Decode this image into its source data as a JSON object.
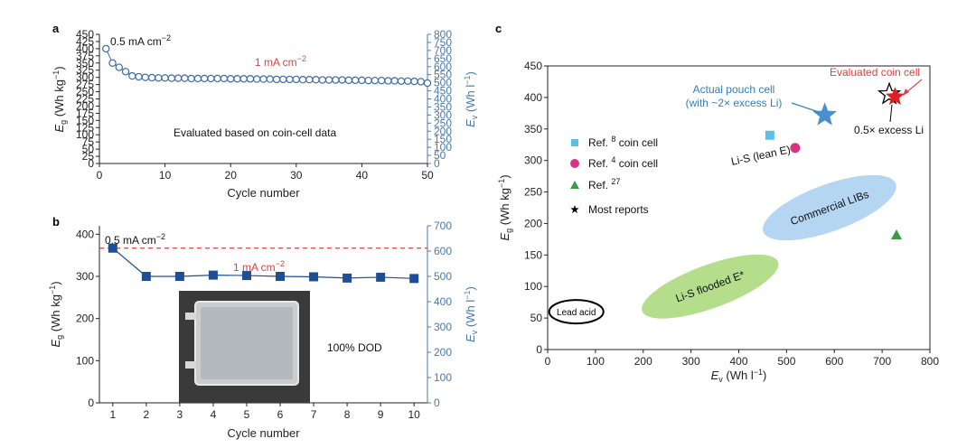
{
  "chart_data": [
    {
      "panel": "a",
      "type": "scatter",
      "xlabel": "Cycle number",
      "ylabel": "E_g (Wh kg⁻¹)",
      "ylabel_right": "E_v (Wh l⁻¹)",
      "xlim": [
        0,
        50
      ],
      "ylim": [
        0,
        450
      ],
      "ylim_right": [
        0,
        800
      ],
      "xticks": [
        "0",
        "10",
        "20",
        "30",
        "40",
        "50"
      ],
      "yticks": [
        "0",
        "25",
        "50",
        "75",
        "100",
        "125",
        "150",
        "175",
        "200",
        "225",
        "250",
        "275",
        "300",
        "325",
        "350",
        "375",
        "400",
        "425",
        "450"
      ],
      "yticks_right": [
        "0",
        "50",
        "100",
        "150",
        "200",
        "250",
        "300",
        "350",
        "400",
        "450",
        "500",
        "550",
        "600",
        "650",
        "700",
        "750",
        "800"
      ],
      "x": [
        1,
        2,
        3,
        4,
        5,
        6,
        7,
        8,
        9,
        10,
        11,
        12,
        13,
        14,
        15,
        16,
        17,
        18,
        19,
        20,
        21,
        22,
        23,
        24,
        25,
        26,
        27,
        28,
        29,
        30,
        31,
        32,
        33,
        34,
        35,
        36,
        37,
        38,
        39,
        40,
        41,
        42,
        43,
        44,
        45,
        46,
        47,
        48,
        49,
        50
      ],
      "y": [
        400,
        350,
        335,
        320,
        305,
        302,
        300,
        299,
        298,
        298,
        297,
        297,
        297,
        296,
        296,
        296,
        296,
        296,
        296,
        295,
        295,
        295,
        295,
        294,
        294,
        294,
        293,
        293,
        293,
        293,
        292,
        292,
        292,
        291,
        291,
        291,
        291,
        290,
        290,
        290,
        289,
        289,
        289,
        288,
        288,
        287,
        287,
        286,
        285,
        280
      ],
      "annotations": [
        "0.5 mA cm⁻²",
        "1 mA cm⁻²",
        "Evaluated based on coin-cell data"
      ]
    },
    {
      "panel": "b",
      "type": "line",
      "xlabel": "Cycle number",
      "ylabel": "E_g (Wh kg⁻¹)",
      "ylabel_right": "E_v (Wh l⁻¹)",
      "xlim": [
        0.6,
        10.4
      ],
      "ylim": [
        0,
        420
      ],
      "ylim_right": [
        0,
        700
      ],
      "xticks": [
        "1",
        "2",
        "3",
        "4",
        "5",
        "6",
        "7",
        "8",
        "9",
        "10"
      ],
      "yticks": [
        "0",
        "100",
        "200",
        "300",
        "400"
      ],
      "yticks_right": [
        "0",
        "100",
        "200",
        "300",
        "400",
        "500",
        "600",
        "700"
      ],
      "x": [
        1,
        2,
        3,
        4,
        5,
        6,
        7,
        8,
        9,
        10
      ],
      "y": [
        367,
        300,
        300,
        303,
        302,
        300,
        299,
        296,
        298,
        295
      ],
      "reference_line_y": 367,
      "annotations": [
        "0.5 mA cm⁻²",
        "1 mA cm⁻²",
        "100% DOD"
      ]
    },
    {
      "panel": "c",
      "type": "scatter",
      "xlabel": "E_v (Wh l⁻¹)",
      "ylabel": "E_g (Wh kg⁻¹)",
      "xlim": [
        0,
        800
      ],
      "ylim": [
        0,
        450
      ],
      "xticks": [
        "0",
        "100",
        "200",
        "300",
        "400",
        "500",
        "600",
        "700",
        "800"
      ],
      "yticks": [
        "0",
        "50",
        "100",
        "150",
        "200",
        "250",
        "300",
        "350",
        "400",
        "450"
      ],
      "points": [
        {
          "marker": "square",
          "x": 465,
          "y": 340,
          "color": "#5bbfe8"
        },
        {
          "marker": "circle",
          "x": 518,
          "y": 320,
          "color": "#d63384"
        },
        {
          "marker": "triangle",
          "x": 730,
          "y": 182,
          "color": "#3a9a4a"
        },
        {
          "marker": "star",
          "x": 580,
          "y": 372,
          "color": "#4a8fd0"
        },
        {
          "marker": "star-outline",
          "x": 715,
          "y": 405,
          "color": "#000000"
        },
        {
          "marker": "star",
          "x": 727,
          "y": 401,
          "color": "#e02020"
        }
      ],
      "regions": [
        {
          "label": "Lead acid",
          "x": 60,
          "y": 60
        },
        {
          "label": "Li-S flooded E*",
          "x": 340,
          "y": 100
        },
        {
          "label": "Commercial LIBs",
          "x": 590,
          "y": 225
        }
      ],
      "legend": [
        {
          "marker": "square",
          "color": "#5bbfe8",
          "text": "Ref. 8 coin cell"
        },
        {
          "marker": "circle",
          "color": "#d63384",
          "text": "Ref. 4 coin cell"
        },
        {
          "marker": "triangle",
          "color": "#3a9a4a",
          "text": "Ref. 27"
        },
        {
          "marker": "star",
          "color": "#000000",
          "text": "Most reports"
        }
      ],
      "annotations": [
        "Evaluated coin cell",
        "Actual pouch cell",
        "(with ~2× excess Li)",
        "0.5× excess Li",
        "Li-S (lean E)"
      ]
    }
  ],
  "labels": {
    "panel_a": "a",
    "panel_b": "b",
    "panel_c": "c",
    "cycle_number": "Cycle number",
    "eg": "E",
    "eg_sub": "g",
    "ev": "E",
    "ev_sub": "v",
    "unit_kg": "(Wh kg",
    "unit_l": "(Wh l",
    "unit_exp": "−1",
    "rate_05": "0.5 mA cm",
    "rate_1": "1 mA cm",
    "rate_exp": "−2",
    "coin_note": "Evaluated based on coin-cell data",
    "dod": "100% DOD",
    "evaluated_coin": "Evaluated coin cell",
    "pouch_1": "Actual pouch cell",
    "pouch_2": "(with ~2× excess Li)",
    "excess_li": "0.5× excess Li",
    "lis_lean": "Li-S (lean E)",
    "lead_acid": "Lead acid",
    "lis_flooded": "Li-S flooded E*",
    "commercial": "Commercial LIBs",
    "legend_ref8_a": "Ref.",
    "legend_ref8_sup": "8",
    "legend_ref8_b": "coin cell",
    "legend_ref4_a": "Ref.",
    "legend_ref4_sup": "4",
    "legend_ref4_b": "coin cell",
    "legend_ref27_a": "Ref.",
    "legend_ref27_sup": "27",
    "legend_most": "Most reports"
  },
  "colors": {
    "axis_right": "#4a78a8",
    "marker_a": "#3b6aa6",
    "marker_b": "#1f4e96",
    "reference": "#e04040",
    "annotation_red": "#e04040",
    "pouch_star": "#4a8fd0",
    "ellipse_green": "#a8d878",
    "ellipse_blue": "#a8cff0"
  }
}
